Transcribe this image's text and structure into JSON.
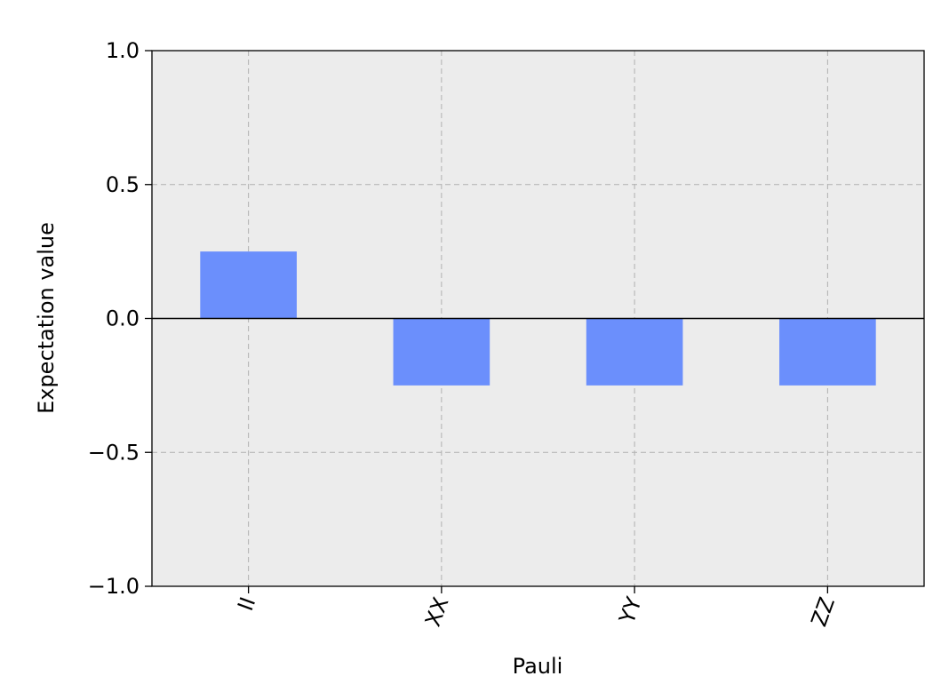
{
  "chart_data": {
    "type": "bar",
    "categories": [
      "II",
      "XX",
      "YY",
      "ZZ"
    ],
    "values": [
      0.25,
      -0.25,
      -0.25,
      -0.25
    ],
    "xlabel": "Pauli",
    "ylabel": "Expectation value",
    "ylim": [
      -1.0,
      1.0
    ],
    "yticks": [
      1.0,
      0.5,
      0.0,
      -0.5,
      -1.0
    ],
    "ytick_labels": [
      "1.0",
      "0.5",
      "0.0",
      "−0.5",
      "−1.0"
    ],
    "grid": true,
    "grid_style": "dashed",
    "zero_line": true,
    "colors": {
      "bar": "#6b8ffc",
      "plot_background": "#ececec",
      "grid": "#b0b0b0",
      "axis": "#000000"
    }
  }
}
